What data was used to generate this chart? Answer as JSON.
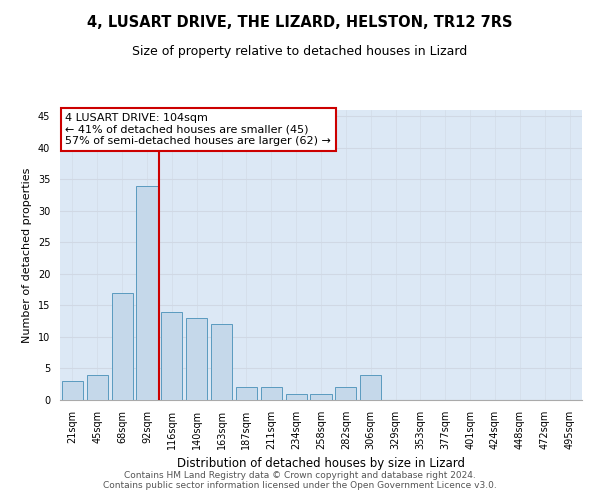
{
  "title": "4, LUSART DRIVE, THE LIZARD, HELSTON, TR12 7RS",
  "subtitle": "Size of property relative to detached houses in Lizard",
  "xlabel": "Distribution of detached houses by size in Lizard",
  "ylabel": "Number of detached properties",
  "categories": [
    "21sqm",
    "45sqm",
    "68sqm",
    "92sqm",
    "116sqm",
    "140sqm",
    "163sqm",
    "187sqm",
    "211sqm",
    "234sqm",
    "258sqm",
    "282sqm",
    "306sqm",
    "329sqm",
    "353sqm",
    "377sqm",
    "401sqm",
    "424sqm",
    "448sqm",
    "472sqm",
    "495sqm"
  ],
  "values": [
    3,
    4,
    17,
    34,
    14,
    13,
    12,
    2,
    2,
    1,
    1,
    2,
    4,
    0,
    0,
    0,
    0,
    0,
    0,
    0,
    0
  ],
  "bar_color": "#c5d8ea",
  "bar_edge_color": "#5a9abf",
  "property_label": "4 LUSART DRIVE: 104sqm",
  "annotation_line1": "← 41% of detached houses are smaller (45)",
  "annotation_line2": "57% of semi-detached houses are larger (62) →",
  "vline_color": "#cc0000",
  "vline_x": 3.5,
  "ylim": [
    0,
    46
  ],
  "yticks": [
    0,
    5,
    10,
    15,
    20,
    25,
    30,
    35,
    40,
    45
  ],
  "grid_color": "#d0d8e4",
  "background_color": "#dce8f5",
  "footer_line1": "Contains HM Land Registry data © Crown copyright and database right 2024.",
  "footer_line2": "Contains public sector information licensed under the Open Government Licence v3.0.",
  "title_fontsize": 10.5,
  "subtitle_fontsize": 9,
  "xlabel_fontsize": 8.5,
  "ylabel_fontsize": 8,
  "tick_fontsize": 7,
  "footer_fontsize": 6.5,
  "annotation_fontsize": 8,
  "box_color": "#cc0000"
}
